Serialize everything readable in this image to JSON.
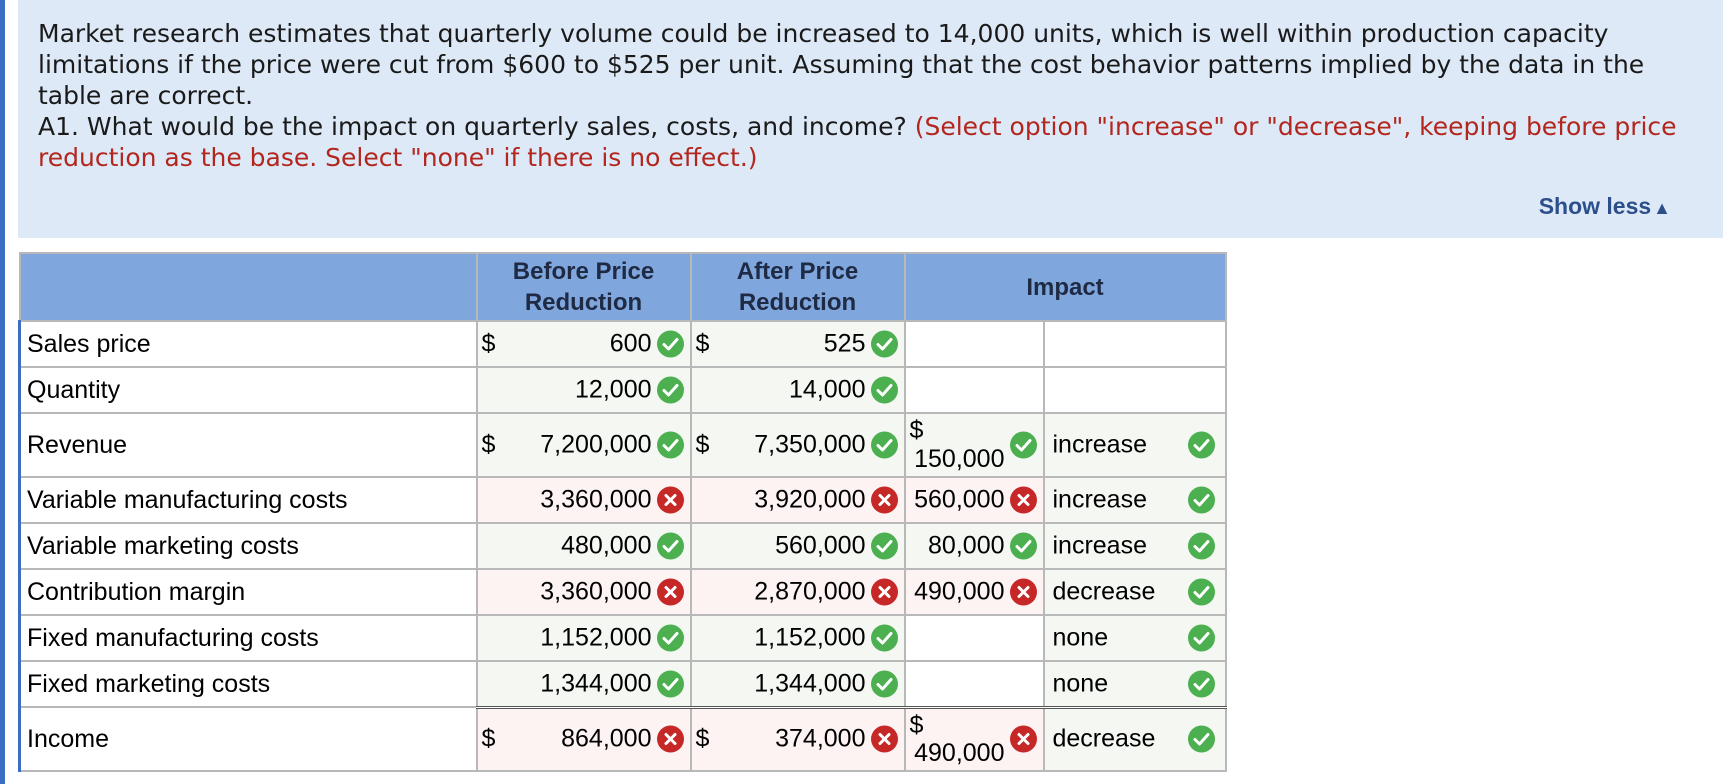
{
  "question": {
    "paragraph": "Market research estimates that quarterly volume could be increased to 14,000 units, which is well within production capacity limitations if the price were cut from $600 to $525 per unit. Assuming that the cost behavior patterns implied by the data in the table are correct.",
    "prompt": "A1. What would be the impact on quarterly sales, costs, and income?",
    "instruction": "(Select option \"increase\" or \"decrease\", keeping before price reduction as the base. Select \"none\" if there is no effect.)",
    "show_less": "Show less"
  },
  "table": {
    "headers": {
      "before": "Before Price Reduction",
      "after": "After Price Reduction",
      "impact": "Impact"
    },
    "rows": [
      {
        "label": "Sales price",
        "before": {
          "dollar": "$",
          "value": "600",
          "status": "correct"
        },
        "after": {
          "dollar": "$",
          "value": "525",
          "status": "correct"
        },
        "impact_amount": null,
        "impact_dir": null
      },
      {
        "label": "Quantity",
        "before": {
          "dollar": "",
          "value": "12,000",
          "status": "correct"
        },
        "after": {
          "dollar": "",
          "value": "14,000",
          "status": "correct"
        },
        "impact_amount": null,
        "impact_dir": null
      },
      {
        "label": "Revenue",
        "before": {
          "dollar": "$",
          "value": "7,200,000",
          "status": "correct"
        },
        "after": {
          "dollar": "$",
          "value": "7,350,000",
          "status": "correct"
        },
        "impact_amount": {
          "dollar": "$",
          "value": "150,000",
          "status": "correct"
        },
        "impact_dir": {
          "value": "increase",
          "status": "correct"
        }
      },
      {
        "label": "Variable manufacturing costs",
        "before": {
          "dollar": "",
          "value": "3,360,000",
          "status": "incorrect"
        },
        "after": {
          "dollar": "",
          "value": "3,920,000",
          "status": "incorrect"
        },
        "impact_amount": {
          "dollar": "",
          "value": "560,000",
          "status": "incorrect"
        },
        "impact_dir": {
          "value": "increase",
          "status": "correct"
        }
      },
      {
        "label": "Variable marketing costs",
        "before": {
          "dollar": "",
          "value": "480,000",
          "status": "correct"
        },
        "after": {
          "dollar": "",
          "value": "560,000",
          "status": "correct"
        },
        "impact_amount": {
          "dollar": "",
          "value": "80,000",
          "status": "correct"
        },
        "impact_dir": {
          "value": "increase",
          "status": "correct"
        }
      },
      {
        "label": "Contribution margin",
        "before": {
          "dollar": "",
          "value": "3,360,000",
          "status": "incorrect"
        },
        "after": {
          "dollar": "",
          "value": "2,870,000",
          "status": "incorrect"
        },
        "impact_amount": {
          "dollar": "",
          "value": "490,000",
          "status": "incorrect"
        },
        "impact_dir": {
          "value": "decrease",
          "status": "correct"
        }
      },
      {
        "label": "Fixed manufacturing costs",
        "before": {
          "dollar": "",
          "value": "1,152,000",
          "status": "correct"
        },
        "after": {
          "dollar": "",
          "value": "1,152,000",
          "status": "correct"
        },
        "impact_amount": {
          "dollar": "",
          "value": "",
          "status": ""
        },
        "impact_dir": {
          "value": "none",
          "status": "correct"
        }
      },
      {
        "label": "Fixed marketing costs",
        "before": {
          "dollar": "",
          "value": "1,344,000",
          "status": "correct"
        },
        "after": {
          "dollar": "",
          "value": "1,344,000",
          "status": "correct"
        },
        "impact_amount": {
          "dollar": "",
          "value": "",
          "status": ""
        },
        "impact_dir": {
          "value": "none",
          "status": "correct"
        }
      },
      {
        "label": "Income",
        "before": {
          "dollar": "$",
          "value": "864,000",
          "status": "incorrect"
        },
        "after": {
          "dollar": "$",
          "value": "374,000",
          "status": "incorrect"
        },
        "impact_amount": {
          "dollar": "$",
          "value": "490,000",
          "status": "incorrect"
        },
        "impact_dir": {
          "value": "decrease",
          "status": "correct"
        }
      }
    ]
  },
  "colors": {
    "correct": "#4caf50",
    "incorrect": "#c62828",
    "header_bg": "#7fa7de",
    "question_bg": "#dde9f7",
    "instruction": "#b3261e"
  }
}
